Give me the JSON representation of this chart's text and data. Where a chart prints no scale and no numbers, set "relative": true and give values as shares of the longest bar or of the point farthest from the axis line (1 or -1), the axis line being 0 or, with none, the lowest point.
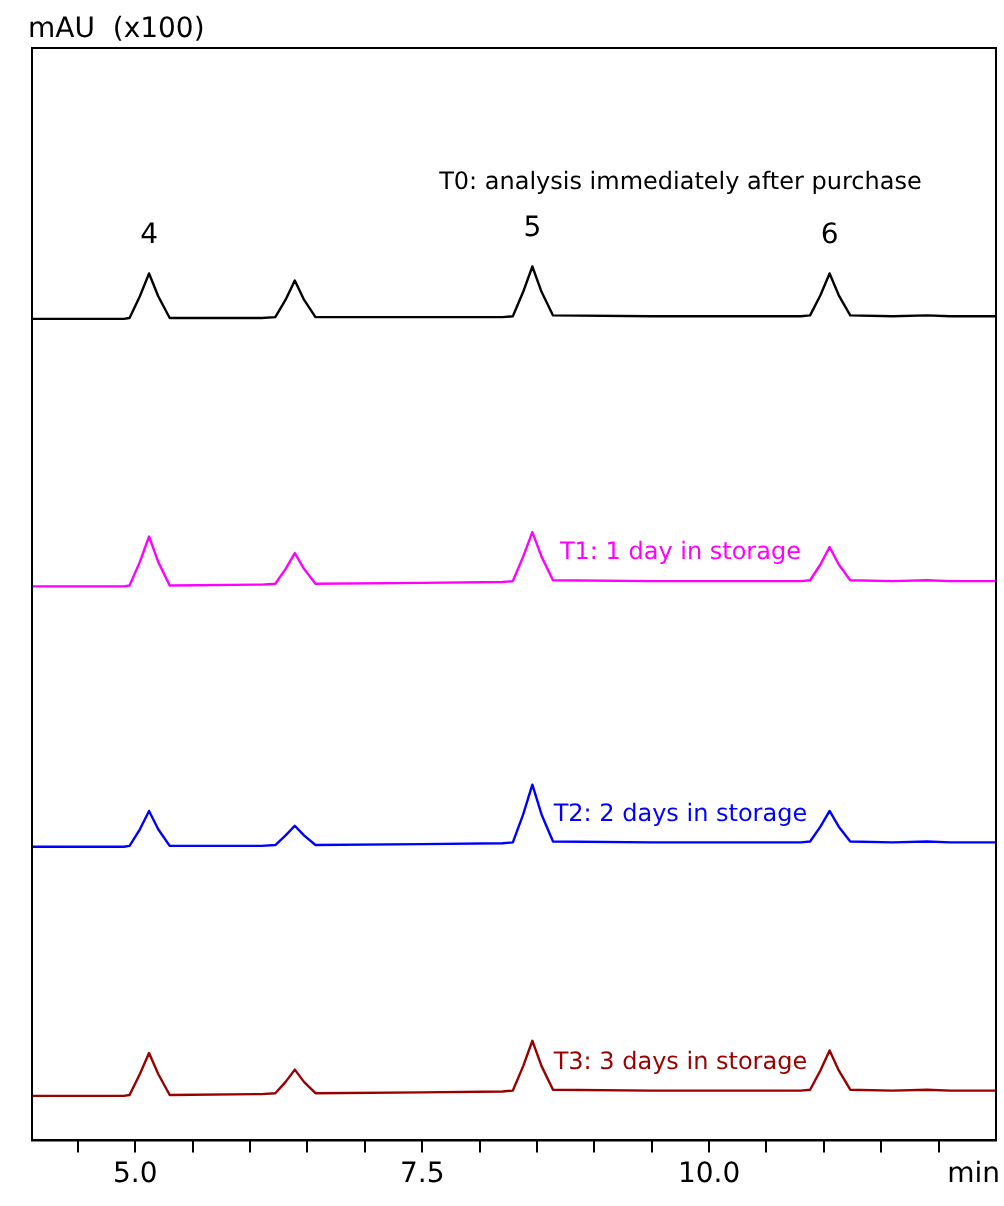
{
  "chart_data": {
    "type": "line",
    "relative": true,
    "xlabel": "min",
    "xlim": [
      4.1,
      12.5
    ],
    "xticks": [
      {
        "value": 4.5,
        "label": null
      },
      {
        "value": 5,
        "label": "5.0"
      },
      {
        "value": 5.5,
        "label": null
      },
      {
        "value": 6,
        "label": null
      },
      {
        "value": 6.5,
        "label": null
      },
      {
        "value": 7,
        "label": null
      },
      {
        "value": 7.5,
        "label": "7.5"
      },
      {
        "value": 8,
        "label": null
      },
      {
        "value": 8.5,
        "label": null
      },
      {
        "value": 9,
        "label": null
      },
      {
        "value": 9.5,
        "label": null
      },
      {
        "value": 10,
        "label": "10.0"
      },
      {
        "value": 10.5,
        "label": null
      },
      {
        "value": 11,
        "label": null
      },
      {
        "value": 11.5,
        "label": null
      },
      {
        "value": 12,
        "label": null
      }
    ],
    "tick_labels": "x",
    "marker": "none",
    "line_style": "solid",
    "x": [
      4.1,
      4.9,
      4.95,
      5.04,
      5.12,
      5.2,
      5.3,
      6.1,
      6.22,
      6.31,
      6.39,
      6.47,
      6.57,
      7.5,
      8.2,
      8.29,
      8.38,
      8.46,
      8.54,
      8.64,
      9.5,
      10.8,
      10.88,
      10.97,
      11.05,
      11.13,
      11.23,
      11.6,
      11.9,
      12.1,
      12.5
    ],
    "series": [
      {
        "name": "T0: analysis immediately after purchase",
        "color": "#000000",
        "values": [
          0.94,
          0.94,
          0.941,
          0.966,
          0.992,
          0.966,
          0.941,
          0.941,
          0.942,
          0.962,
          0.984,
          0.962,
          0.942,
          0.942,
          0.942,
          0.943,
          0.971,
          1.0,
          0.971,
          0.944,
          0.943,
          0.943,
          0.944,
          0.967,
          0.992,
          0.967,
          0.944,
          0.943,
          0.944,
          0.943,
          0.943
        ]
      },
      {
        "name": "T1: 1 day in storage",
        "color": "#ff00ff",
        "values": [
          0.634,
          0.634,
          0.635,
          0.662,
          0.691,
          0.662,
          0.635,
          0.636,
          0.637,
          0.654,
          0.672,
          0.654,
          0.637,
          0.638,
          0.639,
          0.64,
          0.668,
          0.696,
          0.668,
          0.641,
          0.64,
          0.64,
          0.641,
          0.659,
          0.679,
          0.659,
          0.641,
          0.64,
          0.641,
          0.64,
          0.64
        ]
      },
      {
        "name": "T2: 2 days in storage",
        "color": "#0000ff",
        "values": [
          0.336,
          0.336,
          0.337,
          0.356,
          0.377,
          0.356,
          0.337,
          0.337,
          0.338,
          0.349,
          0.36,
          0.349,
          0.338,
          0.339,
          0.34,
          0.341,
          0.373,
          0.407,
          0.373,
          0.342,
          0.341,
          0.341,
          0.342,
          0.359,
          0.377,
          0.359,
          0.342,
          0.341,
          0.342,
          0.341,
          0.341
        ]
      },
      {
        "name": "T3: 3 days in storage",
        "color": "#990000",
        "values": [
          0.051,
          0.051,
          0.052,
          0.076,
          0.1,
          0.076,
          0.052,
          0.053,
          0.054,
          0.067,
          0.081,
          0.067,
          0.054,
          0.055,
          0.056,
          0.057,
          0.085,
          0.114,
          0.085,
          0.058,
          0.057,
          0.057,
          0.058,
          0.08,
          0.103,
          0.08,
          0.058,
          0.057,
          0.058,
          0.057,
          0.057
        ]
      }
    ],
    "annotations": [
      "mAU  (x100)",
      {
        "text": "4",
        "x": 5.12,
        "y": 0.992
      },
      {
        "text": "5",
        "x": 8.46,
        "y": 1.0
      },
      {
        "text": "6",
        "x": 11.05,
        "y": 0.992
      }
    ]
  }
}
